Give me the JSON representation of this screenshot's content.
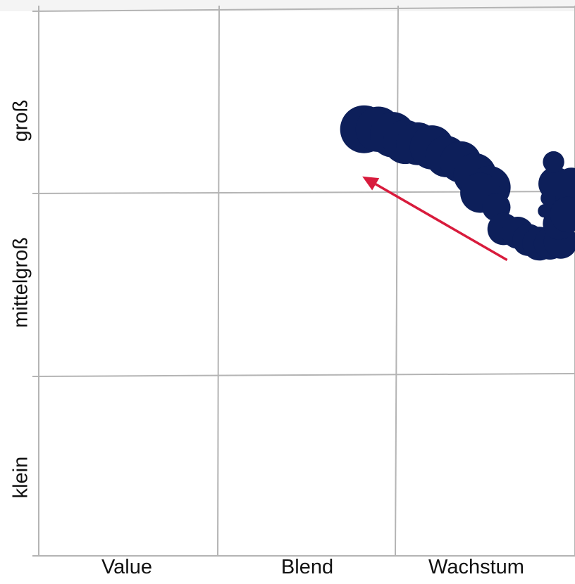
{
  "chart_data": {
    "type": "scatter",
    "x_categories": [
      "Value",
      "Blend",
      "Wachstum"
    ],
    "y_categories": [
      "klein",
      "mittelgroß",
      "groß"
    ],
    "xlim": [
      0,
      3
    ],
    "ylim": [
      0,
      3
    ],
    "grid": true,
    "colors": {
      "points": "#0d1f5a",
      "arrow": "#d81b3c",
      "grid": "#b4b4b4"
    },
    "points": [
      {
        "x": 1.82,
        "y": 2.35,
        "size": 1.0
      },
      {
        "x": 1.9,
        "y": 2.35,
        "size": 0.9
      },
      {
        "x": 1.98,
        "y": 2.32,
        "size": 0.9
      },
      {
        "x": 2.05,
        "y": 2.28,
        "size": 0.85
      },
      {
        "x": 2.12,
        "y": 2.27,
        "size": 0.8
      },
      {
        "x": 2.2,
        "y": 2.25,
        "size": 0.85
      },
      {
        "x": 2.28,
        "y": 2.2,
        "size": 0.75
      },
      {
        "x": 2.36,
        "y": 2.17,
        "size": 0.75
      },
      {
        "x": 2.44,
        "y": 2.1,
        "size": 0.8
      },
      {
        "x": 2.52,
        "y": 2.03,
        "size": 0.8
      },
      {
        "x": 2.47,
        "y": 2.0,
        "size": 0.7
      },
      {
        "x": 2.56,
        "y": 1.92,
        "size": 0.35
      },
      {
        "x": 2.6,
        "y": 1.8,
        "size": 0.45
      },
      {
        "x": 2.68,
        "y": 1.78,
        "size": 0.45
      },
      {
        "x": 2.74,
        "y": 1.74,
        "size": 0.45
      },
      {
        "x": 2.8,
        "y": 1.72,
        "size": 0.5
      },
      {
        "x": 2.86,
        "y": 1.72,
        "size": 0.45
      },
      {
        "x": 2.92,
        "y": 1.73,
        "size": 0.5
      },
      {
        "x": 2.91,
        "y": 1.83,
        "size": 0.45
      },
      {
        "x": 2.93,
        "y": 1.94,
        "size": 0.4
      },
      {
        "x": 2.95,
        "y": 2.02,
        "size": 0.55
      },
      {
        "x": 2.97,
        "y": 1.98,
        "size": 0.6
      },
      {
        "x": 2.98,
        "y": 2.05,
        "size": 0.45
      },
      {
        "x": 2.89,
        "y": 2.05,
        "size": 0.5
      },
      {
        "x": 2.88,
        "y": 2.17,
        "size": 0.2
      },
      {
        "x": 2.85,
        "y": 1.97,
        "size": 0.1
      },
      {
        "x": 2.83,
        "y": 1.9,
        "size": 0.08
      },
      {
        "x": 2.96,
        "y": 1.88,
        "size": 0.55
      }
    ],
    "arrow": {
      "from": [
        2.62,
        1.63
      ],
      "to": [
        1.81,
        2.09
      ]
    }
  }
}
